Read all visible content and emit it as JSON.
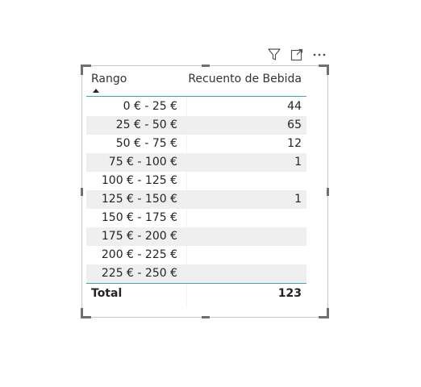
{
  "toolbar": {
    "filter_icon": "filter-icon",
    "focus_icon": "focus-mode-icon",
    "more_icon": "more-options-icon"
  },
  "table": {
    "columns": [
      "Rango",
      "Recuento de Bebida"
    ],
    "sort": {
      "column": "Rango",
      "direction": "ascending"
    },
    "rows": [
      {
        "range": "0 € - 25 €",
        "count": "44"
      },
      {
        "range": "25 € - 50 €",
        "count": "65"
      },
      {
        "range": "50 € - 75 €",
        "count": "12"
      },
      {
        "range": "75 € - 100 €",
        "count": "1"
      },
      {
        "range": "100 € - 125 €",
        "count": ""
      },
      {
        "range": "125 € - 150 €",
        "count": "1"
      },
      {
        "range": "150 € - 175 €",
        "count": ""
      },
      {
        "range": "175 € - 200 €",
        "count": ""
      },
      {
        "range": "200 € - 225 €",
        "count": ""
      },
      {
        "range": "225 € - 250 €",
        "count": ""
      }
    ],
    "total_label": "Total",
    "total_value": "123"
  },
  "colors": {
    "accent_line": "#41a4b8",
    "row_shade": "#efefef",
    "text": "#252423"
  }
}
